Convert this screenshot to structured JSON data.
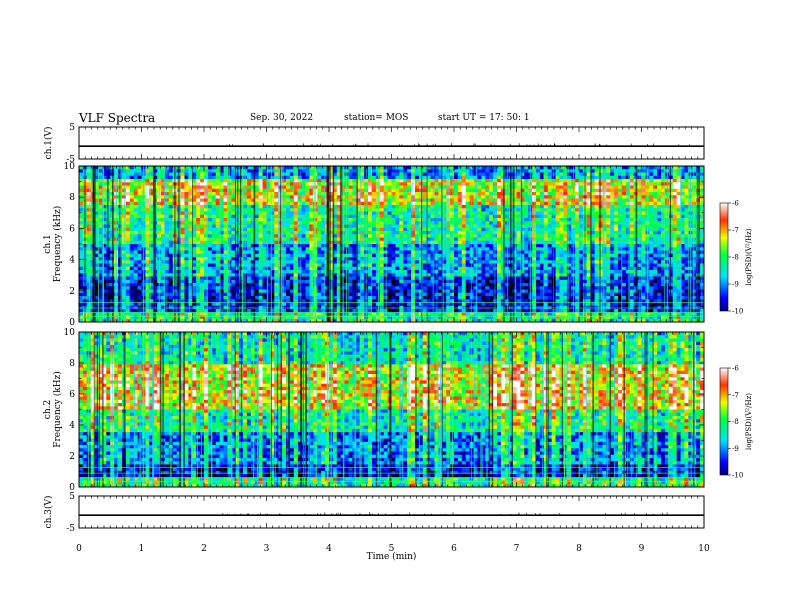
{
  "header": {
    "title": "VLF Spectra",
    "date": "Sep. 30, 2022",
    "station": "station= MOS",
    "start": "start  UT =   17: 50: 1"
  },
  "chart_data": [
    {
      "type": "line",
      "name": "ch1-waveform",
      "ylabel": "ch.1(V)",
      "ylim": [
        -5,
        5
      ],
      "yticks": [
        "5",
        "-5"
      ],
      "x": [
        0,
        10
      ],
      "values": [
        -1,
        -1
      ]
    },
    {
      "type": "heatmap",
      "name": "ch1-spectrogram",
      "ylabel_top": "ch.1",
      "ylabel": "Frequency (kHz)",
      "ylim": [
        0,
        10
      ],
      "yticks": [
        "0",
        "2",
        "4",
        "6",
        "8",
        "10"
      ],
      "colorbar": {
        "label": "log(PSD)(V²/Hz)",
        "range": [
          -10,
          -6
        ],
        "ticks": [
          "-6",
          "-7",
          "-8",
          "-9",
          "-10"
        ]
      }
    },
    {
      "type": "heatmap",
      "name": "ch2-spectrogram",
      "ylabel_top": "ch.2",
      "ylabel": "Frequency (kHz)",
      "ylim": [
        0,
        10
      ],
      "yticks": [
        "0",
        "2",
        "4",
        "6",
        "8",
        "10"
      ],
      "colorbar": {
        "label": "log(PSD)(V²/Hz)",
        "range": [
          -10,
          -6
        ],
        "ticks": [
          "-6",
          "-7",
          "-8",
          "-9",
          "-10"
        ]
      }
    },
    {
      "type": "line",
      "name": "ch3-waveform",
      "ylabel": "ch.3(V)",
      "ylim": [
        -5,
        5
      ],
      "yticks": [
        "5",
        "-5"
      ],
      "x": [
        0,
        10
      ],
      "values": [
        -1,
        -1
      ]
    }
  ],
  "xaxis": {
    "label": "Time  (min)",
    "xlim": [
      0,
      10
    ],
    "ticks": [
      "0",
      "1",
      "2",
      "3",
      "4",
      "5",
      "6",
      "7",
      "8",
      "9",
      "10"
    ]
  }
}
